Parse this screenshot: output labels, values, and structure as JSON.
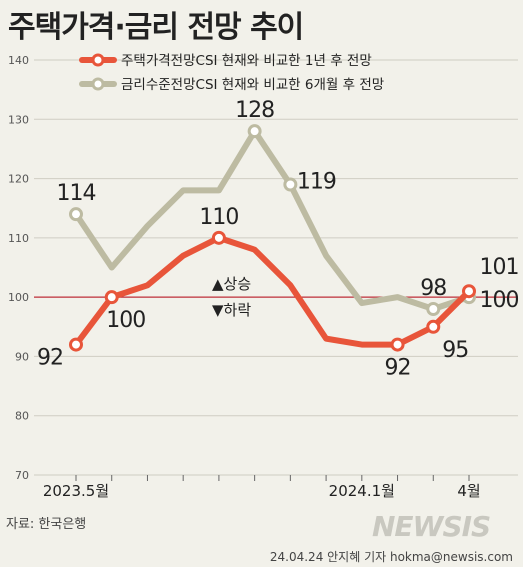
{
  "title": "주택가격·금리 전망 추이",
  "source": "자료: 한국은행",
  "credit": "24.04.24 안지혜 기자  hokma@newsis.com",
  "watermark": "NEWSIS",
  "colors": {
    "red": "#e8553a",
    "gray": "#bdbba2",
    "ref_line": "#c0303a",
    "up": "#d62b2b",
    "down": "#d62b2b"
  },
  "chart_data": {
    "type": "line",
    "x_labels": [
      "2023.5월",
      "2024.1월",
      "4월"
    ],
    "ylim": [
      70,
      140
    ],
    "yticks": [
      70,
      80,
      90,
      100,
      110,
      120,
      130,
      140
    ],
    "series": [
      {
        "name": "주택가격전망CSI 현재와 비교한 1년 후 전망",
        "color": "#e8553a",
        "values": [
          92,
          100,
          102,
          107,
          110,
          108,
          102,
          93,
          92,
          92,
          95,
          101
        ],
        "labels": {
          "0": "92",
          "1": "100",
          "4": "110",
          "9": "92",
          "10": "95",
          "11": "101"
        }
      },
      {
        "name": "금리수준전망CSI 현재와 비교한 6개월 후 전망",
        "color": "#bdbba2",
        "values": [
          114,
          105,
          112,
          118,
          118,
          128,
          119,
          107,
          99,
          100,
          98,
          100
        ],
        "labels": {
          "0": "114",
          "5": "128",
          "6": "119",
          "10": "98",
          "11": "100"
        }
      }
    ],
    "reference_line": 100,
    "annotations": {
      "up": "▲상승",
      "down": "▼하락"
    }
  }
}
